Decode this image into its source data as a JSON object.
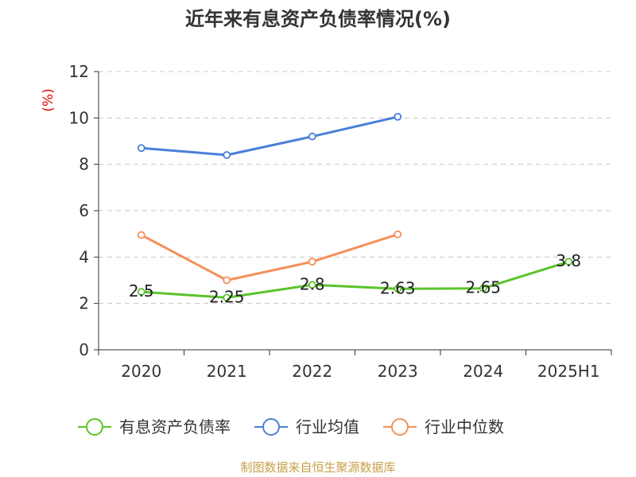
{
  "chart_data": {
    "type": "line",
    "title": "近年来有息资产负债率情况(%)",
    "ylabel": "(%)",
    "categories": [
      "2020",
      "2021",
      "2022",
      "2023",
      "2024",
      "2025H1"
    ],
    "ylim": [
      0,
      12
    ],
    "yticks": [
      0,
      2,
      4,
      6,
      8,
      10,
      12
    ],
    "grid": "horizontal-dashed",
    "legend_position": "bottom",
    "series": [
      {
        "name": "有息资产负债率",
        "color": "#5bc42c",
        "values": [
          2.5,
          2.25,
          2.8,
          2.63,
          2.65,
          3.8
        ],
        "labels": [
          "2.5",
          "2.25",
          "2.8",
          "2.63",
          "2.65",
          "3.8"
        ]
      },
      {
        "name": "行业均值",
        "color": "#4a7fd8",
        "values": [
          8.7,
          8.4,
          9.2,
          10.05,
          null,
          null
        ]
      },
      {
        "name": "行业中位数",
        "color": "#f5905a",
        "values": [
          4.95,
          3.0,
          3.8,
          4.98,
          null,
          null
        ]
      }
    ]
  },
  "source": "制图数据来自恒生聚源数据库"
}
